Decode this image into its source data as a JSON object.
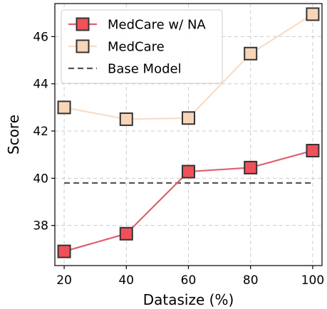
{
  "chart_data": {
    "type": "line",
    "xlabel": "Datasize (%)",
    "ylabel": "Score",
    "x": [
      20,
      40,
      60,
      80,
      100
    ],
    "xlim": [
      17,
      103
    ],
    "ylim": [
      36.3,
      47.4
    ],
    "xticks": [
      "20",
      "40",
      "60",
      "80",
      "100"
    ],
    "yticks": [
      "38",
      "40",
      "42",
      "44",
      "46"
    ],
    "grid": true,
    "legend_position": "top-left",
    "series": [
      {
        "name": "MedCare w/ NA",
        "values": [
          36.9,
          37.65,
          40.28,
          40.45,
          41.17
        ],
        "line_color": "#e06070",
        "marker_color": "#f0505a",
        "marker": "square",
        "style": "solid"
      },
      {
        "name": "MedCare",
        "values": [
          43.0,
          42.5,
          42.55,
          45.28,
          46.95
        ],
        "line_color": "#f9dcc6",
        "marker_color": "#f9d5b8",
        "marker": "square",
        "style": "solid"
      },
      {
        "name": "Base Model",
        "values": [
          39.8,
          39.8,
          39.8,
          39.8,
          39.8
        ],
        "line_color": "#555555",
        "style": "dashed"
      }
    ]
  }
}
